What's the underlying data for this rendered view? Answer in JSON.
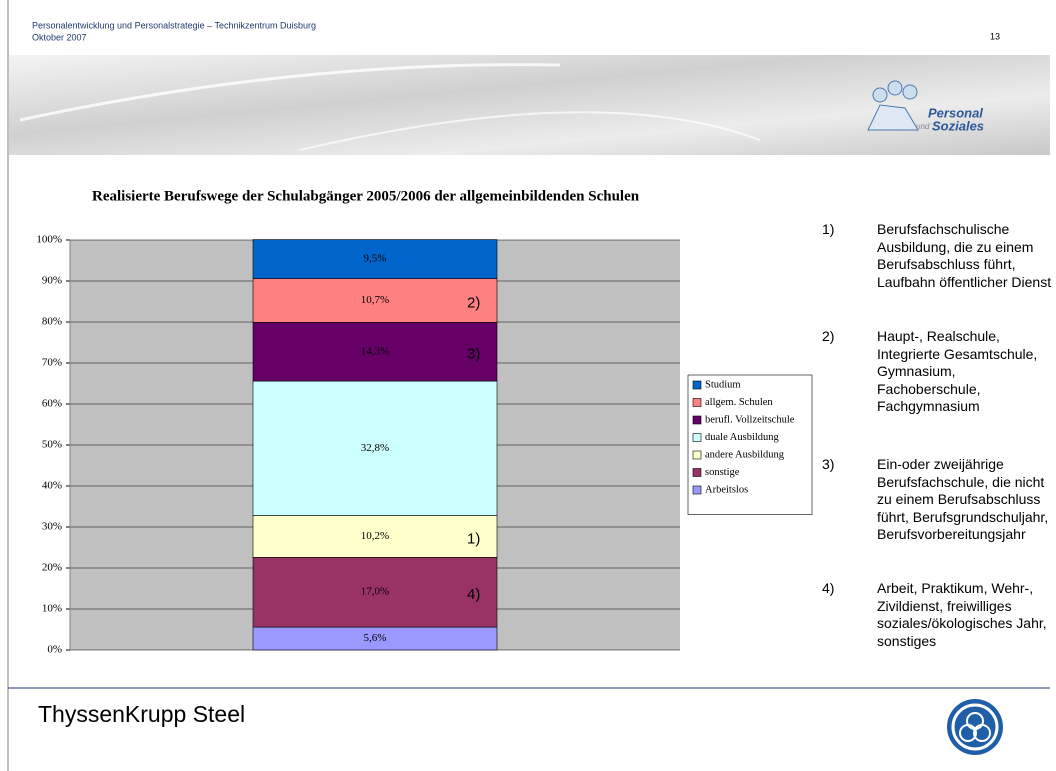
{
  "header": {
    "title": "Personalentwicklung und Personalstrategie – Technikzentrum Duisburg",
    "date": "Oktober 2007",
    "page": "13"
  },
  "logo": {
    "line1": "Personal",
    "small": "und",
    "line2": "Soziales"
  },
  "footer": {
    "company": "ThyssenKrupp Steel"
  },
  "notes": [
    {
      "number": "1)",
      "text": "Berufsfachschulische Ausbildung, die zu einem Berufsabschluss führt, Laufbahn öffentlicher Dienst"
    },
    {
      "number": "2)",
      "text": "Haupt-, Realschule, Integrierte Gesamtschule, Gymnasium, Fachoberschule, Fachgymnasium"
    },
    {
      "number": "3)",
      "text": "Ein-oder zweijährige Berufsfachschule, die nicht zu einem Berufsabschluss führt, Berufsgrundschuljahr, Berufsvorbereitungsjahr"
    },
    {
      "number": "4)",
      "text": "Arbeit, Praktikum, Wehr-, Zivildienst, freiwilliges soziales/ökologisches Jahr, sonstiges"
    }
  ],
  "chart_data": {
    "type": "stacked_bar",
    "title": "Realisierte Berufswege der Schulabgänger 2005/2006 der allgemeinbildenden Schulen",
    "categories": [
      null
    ],
    "series": [
      {
        "name": "Studium",
        "color": "#0066cc",
        "values": [
          9.5
        ],
        "value_labels": [
          "9,5%"
        ]
      },
      {
        "name": "allgem. Schulen",
        "color": "#ff8080",
        "values": [
          10.7
        ],
        "value_labels": [
          "10,7%"
        ],
        "note": "2)"
      },
      {
        "name": "berufl. Vollzeitschule",
        "color": "#660066",
        "values": [
          14.3
        ],
        "value_labels": [
          "14,3%"
        ],
        "note": "3)"
      },
      {
        "name": "duale Ausbildung",
        "color": "#ccffff",
        "values": [
          32.8
        ],
        "value_labels": [
          "32,8%"
        ]
      },
      {
        "name": "andere Ausbildung",
        "color": "#ffffcc",
        "values": [
          10.2
        ],
        "value_labels": [
          "10,2%"
        ],
        "note": "1)"
      },
      {
        "name": "sonstige",
        "color": "#993366",
        "values": [
          17.0
        ],
        "value_labels": [
          "17,0%"
        ],
        "note": "4)"
      },
      {
        "name": "Arbeitslos",
        "color": "#9999ff",
        "values": [
          5.6
        ],
        "value_labels": [
          "5,6%"
        ]
      }
    ],
    "ylim": [
      0,
      100
    ],
    "yticks": [
      {
        "value": 0,
        "label": "0%"
      },
      {
        "value": 10,
        "label": "10%"
      },
      {
        "value": 20,
        "label": "20%"
      },
      {
        "value": 30,
        "label": "30%"
      },
      {
        "value": 40,
        "label": "40%"
      },
      {
        "value": 50,
        "label": "50%"
      },
      {
        "value": 60,
        "label": "60%"
      },
      {
        "value": 70,
        "label": "70%"
      },
      {
        "value": 80,
        "label": "80%"
      },
      {
        "value": 90,
        "label": "90%"
      },
      {
        "value": 100,
        "label": "100%"
      }
    ],
    "grid": true,
    "plot_background": "#c0c0c0",
    "legend": "right"
  }
}
